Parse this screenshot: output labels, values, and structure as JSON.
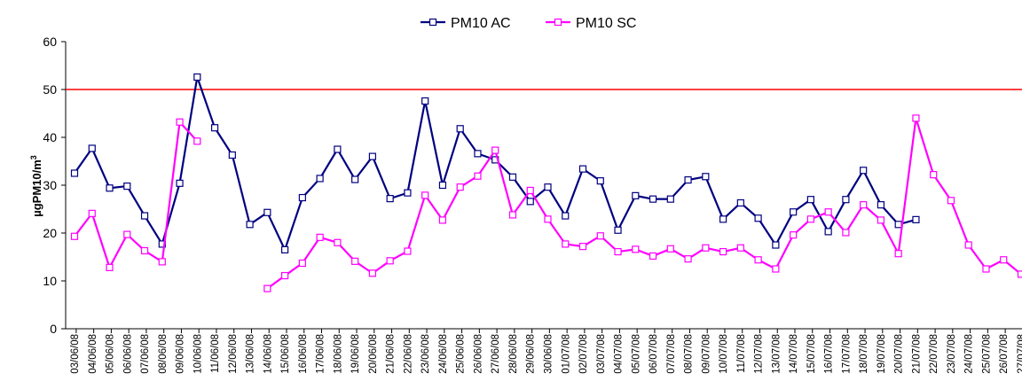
{
  "chart_data": {
    "type": "line",
    "ylabel": "µgPM10/m³",
    "ylabel_base": "µgPM10/m",
    "ylabel_sup": "3",
    "ylim": [
      0,
      60
    ],
    "yticks": [
      0,
      10,
      20,
      30,
      40,
      50,
      60
    ],
    "grid": false,
    "legend_position": "top",
    "limit_line": {
      "value": 50,
      "color": "#ff0000"
    },
    "categories": [
      "03/06/08",
      "04/06/08",
      "05/06/08",
      "06/06/08",
      "07/06/08",
      "08/06/08",
      "09/06/08",
      "10/06/08",
      "11/06/08",
      "12/06/08",
      "13/06/08",
      "14/06/08",
      "15/06/08",
      "16/06/08",
      "17/06/08",
      "18/06/08",
      "19/06/08",
      "20/06/08",
      "21/06/08",
      "22/06/08",
      "23/06/08",
      "24/06/08",
      "25/06/08",
      "26/06/08",
      "27/06/08",
      "28/06/08",
      "29/06/08",
      "30/06/08",
      "01/07/08",
      "02/07/08",
      "03/07/08",
      "04/07/08",
      "05/07/08",
      "06/07/08",
      "07/07/08",
      "08/07/08",
      "09/07/08",
      "10/07/08",
      "11/07/08",
      "12/07/08",
      "13/07/08",
      "14/07/08",
      "15/07/08",
      "16/07/08",
      "17/07/08",
      "18/07/08",
      "19/07/08",
      "20/07/08",
      "21/07/08",
      "22/07/08",
      "23/07/08",
      "24/07/08",
      "25/07/08",
      "26/07/08",
      "27/07/08"
    ],
    "series": [
      {
        "name": "PM10 AC",
        "color": "#000080",
        "values": [
          32.5,
          37.7,
          29.4,
          29.8,
          23.6,
          17.7,
          30.4,
          52.6,
          42.0,
          36.3,
          21.8,
          24.3,
          16.5,
          27.4,
          31.4,
          37.5,
          31.2,
          36.0,
          27.2,
          28.4,
          47.6,
          30.0,
          41.8,
          36.6,
          35.3,
          31.7,
          26.6,
          29.6,
          23.6,
          33.4,
          30.9,
          20.6,
          27.8,
          27.1,
          27.1,
          31.1,
          31.8,
          22.9,
          26.3,
          23.1,
          17.5,
          24.4,
          27.0,
          20.3,
          27.0,
          33.1,
          25.9,
          21.8,
          22.8,
          null,
          null,
          null,
          null,
          null,
          null
        ]
      },
      {
        "name": "PM10 SC",
        "color": "#ff00ff",
        "values": [
          19.3,
          24.1,
          12.8,
          19.7,
          16.3,
          14.0,
          43.2,
          39.2,
          null,
          null,
          null,
          8.4,
          11.1,
          13.7,
          19.1,
          18.0,
          14.1,
          11.6,
          14.2,
          16.2,
          27.9,
          22.7,
          29.6,
          31.9,
          37.3,
          23.8,
          28.9,
          22.9,
          17.7,
          17.2,
          19.4,
          16.1,
          16.6,
          15.2,
          16.7,
          14.6,
          16.9,
          16.1,
          16.9,
          14.4,
          12.5,
          19.6,
          22.9,
          24.4,
          20.1,
          25.9,
          22.7,
          15.7,
          44.0,
          32.2,
          26.8,
          17.5,
          12.5,
          14.4,
          11.4
        ]
      }
    ]
  }
}
